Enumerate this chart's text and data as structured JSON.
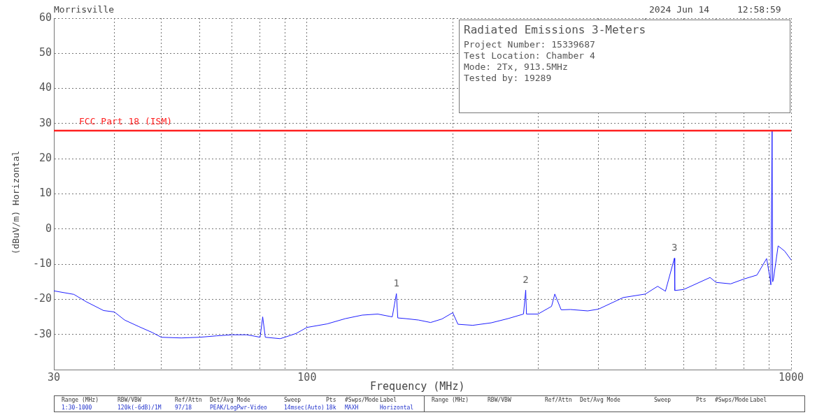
{
  "chart_data": {
    "type": "line",
    "title": "Radiated Emissions 3-Meters",
    "xlabel": "Frequency (MHz)",
    "ylabel": "(dBuV/m) Horizontal",
    "log": "x",
    "xlim": [
      30,
      1000
    ],
    "ylim": [
      -40,
      60
    ],
    "xticks": [
      30,
      {
        "value": 40,
        "label": null
      },
      {
        "value": 50,
        "label": null
      },
      {
        "value": 60,
        "label": null
      },
      {
        "value": 70,
        "label": null
      },
      {
        "value": 80,
        "label": null
      },
      {
        "value": 90,
        "label": null
      },
      100,
      {
        "value": 200,
        "label": null
      },
      {
        "value": 300,
        "label": null
      },
      {
        "value": 400,
        "label": null
      },
      {
        "value": 500,
        "label": null
      },
      {
        "value": 600,
        "label": null
      },
      {
        "value": 700,
        "label": null
      },
      {
        "value": 800,
        "label": null
      },
      {
        "value": 900,
        "label": null
      },
      1000
    ],
    "yticks": [
      60,
      50,
      40,
      30,
      20,
      10,
      0,
      -10,
      -20,
      -30
    ],
    "grid": true,
    "legend": false,
    "marker": "none",
    "line_style": "solid",
    "series": [
      {
        "color": "#1f1fff",
        "x": [
          30,
          33,
          35,
          38,
          40,
          42,
          45,
          48,
          50,
          55,
          60,
          65,
          70,
          75,
          78,
          80,
          81,
          82,
          88,
          90,
          95,
          100,
          110,
          120,
          130,
          140,
          150,
          153,
          154,
          160,
          170,
          180,
          190,
          200,
          205,
          220,
          240,
          260,
          280,
          283,
          284,
          300,
          320,
          325,
          335,
          350,
          380,
          400,
          450,
          500,
          530,
          550,
          574,
          575,
          600,
          680,
          700,
          750,
          800,
          850,
          890,
          905,
          908,
          913.5,
          916,
          920,
          940,
          970,
          1000
        ],
        "values": [
          -17.6,
          -18.6,
          -20.7,
          -23.2,
          -23.6,
          -25.9,
          -27.8,
          -29.5,
          -30.8,
          -31,
          -30.8,
          -30.4,
          -30.1,
          -30.1,
          -30.5,
          -30.8,
          -25,
          -30.8,
          -31.2,
          -30.8,
          -29.7,
          -28,
          -27,
          -25.5,
          -24.5,
          -24.2,
          -25,
          -18.4,
          -25.3,
          -25.5,
          -25.9,
          -26.6,
          -25.6,
          -23.8,
          -27.1,
          -27.4,
          -26.7,
          -25.5,
          -24.2,
          -17.4,
          -24.2,
          -24.2,
          -22,
          -18.5,
          -23,
          -22.9,
          -23.3,
          -22.8,
          -19.5,
          -18.5,
          -16.3,
          -17.7,
          -8.3,
          -17.5,
          -17.2,
          -13.8,
          -15.2,
          -15.6,
          -14.2,
          -13.1,
          -8.4,
          -14.2,
          -15.9,
          28,
          -15,
          -14,
          -4.8,
          -6.3,
          -8.8
        ]
      }
    ],
    "ref_lines": [
      {
        "axis": "y",
        "value": 28,
        "label": "FCC Part 18 (ISM)",
        "color": "#ff2020"
      }
    ],
    "annotations": [
      {
        "text": "1",
        "x": 153,
        "y": -18.4
      },
      {
        "text": "2",
        "x": 283,
        "y": -17.4
      },
      {
        "text": "3",
        "x": 574,
        "y": -8.3
      },
      "Morrisville",
      "2024 Jun 14",
      "12:58:59",
      "Project Number: 15339687",
      "Test Location: Chamber 4",
      "Mode: 2Tx, 913.5MHz",
      "Tested by: 19289",
      "Range (MHz)",
      "RBW/VBW",
      "Ref/Attn",
      "Det/Avg Mode",
      "Sweep",
      "Pts",
      "#Swps/Mode",
      "Label",
      "1:30-1000",
      "120k(-6dB)/1M",
      "97/18",
      "PEAK/LogPwr-Video",
      "14msec(Auto)",
      "18k",
      "MAXH",
      "Horizontal",
      "Range (MHz)",
      "RBW/VBW",
      "Ref/Attn",
      "Det/Avg Mode",
      "Sweep",
      "Pts",
      "#Swps/Mode",
      "Label"
    ]
  }
}
